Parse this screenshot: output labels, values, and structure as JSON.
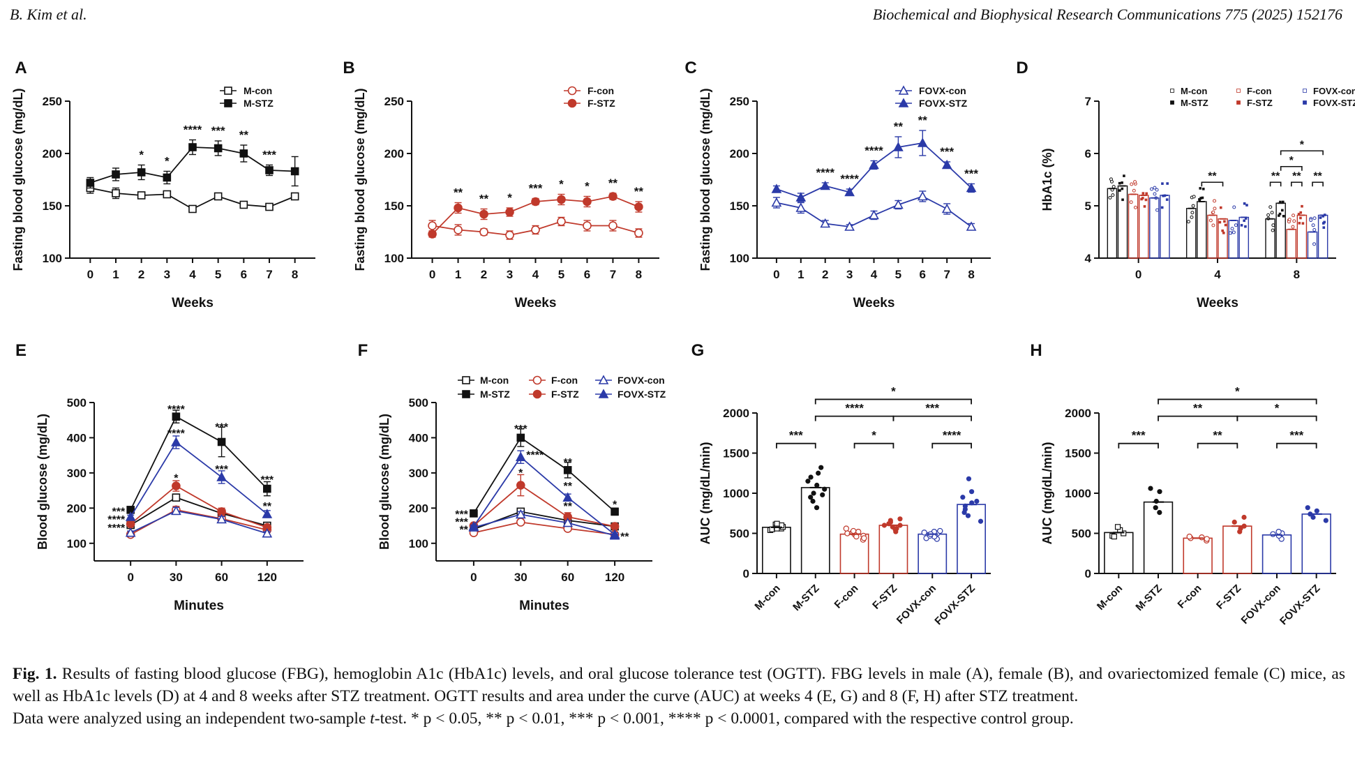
{
  "header": {
    "left": "B. Kim et al.",
    "right": "Biochemical and Biophysical Research Communications 775 (2025) 152176"
  },
  "colors": {
    "male": "#111111",
    "female": "#c0392b",
    "fovx": "#2b3aa8"
  },
  "chart_data": [
    {
      "panel": "A",
      "type": "line",
      "xlabel": "Weeks",
      "ylabel": "Fasting blood glucose (mg/dL)",
      "ylim": [
        100,
        250
      ],
      "yticks": [
        100,
        150,
        200,
        250
      ],
      "x": [
        0,
        1,
        2,
        3,
        4,
        5,
        6,
        7,
        8
      ],
      "series": [
        {
          "name": "M-con",
          "color": "#111111",
          "filled": false,
          "values": [
            167,
            162,
            160,
            161,
            147,
            159,
            151,
            149,
            159
          ],
          "err": [
            5,
            5,
            3,
            3,
            3,
            3,
            3,
            3,
            3
          ]
        },
        {
          "name": "M-STZ",
          "color": "#111111",
          "filled": true,
          "values": [
            172,
            180,
            182,
            177,
            206,
            205,
            200,
            184,
            183
          ],
          "err": [
            5,
            6,
            7,
            6,
            7,
            7,
            8,
            5,
            14
          ]
        }
      ],
      "sig": [
        {
          "x": 2,
          "t": "*"
        },
        {
          "x": 3,
          "t": "*"
        },
        {
          "x": 4,
          "t": "****"
        },
        {
          "x": 5,
          "t": "***"
        },
        {
          "x": 6,
          "t": "**"
        },
        {
          "x": 7,
          "t": "***"
        }
      ]
    },
    {
      "panel": "B",
      "type": "line",
      "xlabel": "Weeks",
      "ylabel": "Fasting blood glucose (mg/dL)",
      "ylim": [
        100,
        250
      ],
      "yticks": [
        100,
        150,
        200,
        250
      ],
      "x": [
        0,
        1,
        2,
        3,
        4,
        5,
        6,
        7,
        8
      ],
      "series": [
        {
          "name": "F-con",
          "color": "#c0392b",
          "filled": false,
          "values": [
            131,
            127,
            125,
            122,
            127,
            135,
            131,
            131,
            124
          ],
          "err": [
            5,
            5,
            3,
            4,
            4,
            4,
            5,
            5,
            4
          ]
        },
        {
          "name": "F-STZ",
          "color": "#c0392b",
          "filled": true,
          "values": [
            123,
            148,
            142,
            144,
            154,
            156,
            154,
            159,
            149
          ],
          "err": [
            3,
            5,
            5,
            4,
            3,
            5,
            5,
            3,
            5
          ]
        }
      ],
      "sig": [
        {
          "x": 1,
          "t": "**"
        },
        {
          "x": 2,
          "t": "**"
        },
        {
          "x": 3,
          "t": "*"
        },
        {
          "x": 4,
          "t": "***"
        },
        {
          "x": 5,
          "t": "*"
        },
        {
          "x": 6,
          "t": "*"
        },
        {
          "x": 7,
          "t": "**"
        },
        {
          "x": 8,
          "t": "**"
        }
      ]
    },
    {
      "panel": "C",
      "type": "line",
      "xlabel": "Weeks",
      "ylabel": "Fasting blood glucose (mg/dL)",
      "ylim": [
        100,
        250
      ],
      "yticks": [
        100,
        150,
        200,
        250
      ],
      "x": [
        0,
        1,
        2,
        3,
        4,
        5,
        6,
        7,
        8
      ],
      "series": [
        {
          "name": "FOVX-con",
          "color": "#2b3aa8",
          "filled": false,
          "values": [
            153,
            148,
            133,
            130,
            141,
            151,
            159,
            147,
            130
          ],
          "err": [
            5,
            5,
            3,
            2,
            4,
            4,
            5,
            5,
            3
          ]
        },
        {
          "name": "FOVX-STZ",
          "color": "#2b3aa8",
          "filled": true,
          "values": [
            166,
            158,
            169,
            163,
            189,
            206,
            210,
            189,
            167
          ],
          "err": [
            3,
            4,
            3,
            3,
            4,
            10,
            12,
            3,
            4
          ]
        }
      ],
      "sig": [
        {
          "x": 2,
          "t": "****"
        },
        {
          "x": 3,
          "t": "****"
        },
        {
          "x": 4,
          "t": "****"
        },
        {
          "x": 5,
          "t": "**"
        },
        {
          "x": 6,
          "t": "**"
        },
        {
          "x": 7,
          "t": "***"
        },
        {
          "x": 8,
          "t": "***"
        }
      ]
    },
    {
      "panel": "D",
      "type": "bar",
      "xlabel": "Weeks",
      "ylabel": "HbA1c (%)",
      "ylim": [
        4,
        7
      ],
      "yticks": [
        4,
        5,
        6,
        7
      ],
      "categories": [
        "0",
        "4",
        "8"
      ],
      "series": [
        {
          "name": "M-con",
          "color": "#111111",
          "filled": false,
          "values": [
            5.33,
            4.95,
            4.75
          ]
        },
        {
          "name": "M-STZ",
          "color": "#111111",
          "filled": true,
          "values": [
            5.38,
            5.08,
            5.05
          ]
        },
        {
          "name": "F-con",
          "color": "#c0392b",
          "filled": false,
          "values": [
            5.22,
            4.82,
            4.55
          ]
        },
        {
          "name": "F-STZ",
          "color": "#c0392b",
          "filled": true,
          "values": [
            5.2,
            4.75,
            4.82
          ]
        },
        {
          "name": "FOVX-con",
          "color": "#2b3aa8",
          "filled": false,
          "values": [
            5.15,
            4.72,
            4.5
          ]
        },
        {
          "name": "FOVX-STZ",
          "color": "#2b3aa8",
          "filled": true,
          "values": [
            5.2,
            4.78,
            4.82
          ]
        }
      ],
      "brackets": [
        {
          "cat": 1,
          "a": 1,
          "b": 3,
          "level": 0,
          "t": "**"
        },
        {
          "cat": 2,
          "a": 0,
          "b": 1,
          "level": 0,
          "t": "**"
        },
        {
          "cat": 2,
          "a": 2,
          "b": 3,
          "level": 0,
          "t": "**"
        },
        {
          "cat": 2,
          "a": 4,
          "b": 5,
          "level": 0,
          "t": "**"
        },
        {
          "cat": 2,
          "a": 1,
          "b": 3,
          "level": 1,
          "t": "*"
        },
        {
          "cat": 2,
          "a": 1,
          "b": 5,
          "level": 2,
          "t": "*"
        }
      ]
    },
    {
      "panel": "E",
      "type": "line",
      "xlabel": "Minutes",
      "ylabel": "Blood glucose (mg/dL)",
      "ylim": [
        50,
        500
      ],
      "yticks": [
        100,
        200,
        300,
        400,
        500
      ],
      "x": [
        0,
        30,
        60,
        120
      ],
      "series": [
        {
          "name": "M-con",
          "color": "#111111",
          "filled": false,
          "values": [
            152,
            230,
            185,
            150
          ],
          "err": [
            5,
            10,
            10,
            6
          ]
        },
        {
          "name": "M-STZ",
          "color": "#111111",
          "filled": true,
          "values": [
            195,
            460,
            388,
            255
          ],
          "err": [
            5,
            18,
            42,
            20
          ]
        },
        {
          "name": "F-con",
          "color": "#c0392b",
          "filled": false,
          "values": [
            125,
            195,
            170,
            138
          ],
          "err": [
            5,
            10,
            10,
            6
          ]
        },
        {
          "name": "F-STZ",
          "color": "#c0392b",
          "filled": true,
          "values": [
            155,
            263,
            190,
            145
          ],
          "err": [
            5,
            15,
            10,
            6
          ]
        },
        {
          "name": "FOVX-con",
          "color": "#2b3aa8",
          "filled": false,
          "values": [
            130,
            192,
            168,
            128
          ],
          "err": [
            5,
            10,
            8,
            5
          ]
        },
        {
          "name": "FOVX-STZ",
          "color": "#2b3aa8",
          "filled": true,
          "values": [
            175,
            387,
            288,
            183
          ],
          "err": [
            5,
            18,
            18,
            10
          ]
        }
      ],
      "labels": [
        {
          "x": 0,
          "y": 190,
          "t": "***",
          "side": "left"
        },
        {
          "x": 0,
          "y": 167,
          "t": "****",
          "side": "left"
        },
        {
          "x": 0,
          "y": 143,
          "t": "****",
          "side": "left"
        },
        {
          "x": 30,
          "y": 480,
          "t": "****",
          "side": "center"
        },
        {
          "x": 30,
          "y": 412,
          "t": "****",
          "side": "center"
        },
        {
          "x": 30,
          "y": 285,
          "t": "*",
          "side": "center"
        },
        {
          "x": 60,
          "y": 430,
          "t": "***",
          "side": "center"
        },
        {
          "x": 60,
          "y": 310,
          "t": "***",
          "side": "center"
        },
        {
          "x": 120,
          "y": 280,
          "t": "***",
          "side": "center"
        },
        {
          "x": 120,
          "y": 205,
          "t": "**",
          "side": "center"
        }
      ]
    },
    {
      "panel": "F",
      "type": "line",
      "xlabel": "Minutes",
      "ylabel": "Blood glucose (mg/dL)",
      "ylim": [
        50,
        500
      ],
      "yticks": [
        100,
        200,
        300,
        400,
        500
      ],
      "x": [
        0,
        30,
        60,
        120
      ],
      "series": [
        {
          "name": "M-con",
          "color": "#111111",
          "filled": false,
          "values": [
            140,
            190,
            165,
            148
          ],
          "err": [
            4,
            8,
            6,
            5
          ]
        },
        {
          "name": "M-STZ",
          "color": "#111111",
          "filled": true,
          "values": [
            185,
            400,
            308,
            190
          ],
          "err": [
            5,
            25,
            22,
            10
          ]
        },
        {
          "name": "F-con",
          "color": "#c0392b",
          "filled": false,
          "values": [
            130,
            160,
            142,
            125
          ],
          "err": [
            4,
            6,
            5,
            4
          ]
        },
        {
          "name": "F-STZ",
          "color": "#c0392b",
          "filled": true,
          "values": [
            150,
            265,
            175,
            148
          ],
          "err": [
            5,
            30,
            12,
            6
          ]
        },
        {
          "name": "FOVX-con",
          "color": "#2b3aa8",
          "filled": false,
          "values": [
            145,
            182,
            158,
            122
          ],
          "err": [
            4,
            8,
            6,
            4
          ]
        },
        {
          "name": "FOVX-STZ",
          "color": "#2b3aa8",
          "filled": true,
          "values": [
            148,
            345,
            230,
            125
          ],
          "err": [
            4,
            18,
            10,
            5
          ]
        }
      ],
      "legend": [
        "M-con",
        "F-con",
        "FOVX-con",
        "M-STZ",
        "F-STZ",
        "FOVX-STZ"
      ],
      "labels": [
        {
          "x": 0,
          "y": 182,
          "t": "***",
          "side": "left"
        },
        {
          "x": 0,
          "y": 160,
          "t": "***",
          "side": "left"
        },
        {
          "x": 0,
          "y": 138,
          "t": "**",
          "side": "left"
        },
        {
          "x": 30,
          "y": 425,
          "t": "***",
          "side": "center"
        },
        {
          "x": 30,
          "y": 350,
          "t": "****",
          "side": "right"
        },
        {
          "x": 30,
          "y": 300,
          "t": "*",
          "side": "center"
        },
        {
          "x": 60,
          "y": 330,
          "t": "**",
          "side": "center"
        },
        {
          "x": 60,
          "y": 262,
          "t": "**",
          "side": "center"
        },
        {
          "x": 60,
          "y": 205,
          "t": "**",
          "side": "center"
        },
        {
          "x": 120,
          "y": 210,
          "t": "*",
          "side": "center"
        },
        {
          "x": 120,
          "y": 118,
          "t": "**",
          "side": "right"
        }
      ]
    },
    {
      "panel": "G",
      "type": "bar",
      "ylabel": "AUC (mg/dL/min)",
      "ylim": [
        0,
        2000
      ],
      "yticks": [
        0,
        500,
        1000,
        1500,
        2000
      ],
      "categories": [
        "M-con",
        "M-STZ",
        "F-con",
        "F-STZ",
        "FOVX-con",
        "FOVX-STZ"
      ],
      "colors": [
        "#111111",
        "#111111",
        "#c0392b",
        "#c0392b",
        "#2b3aa8",
        "#2b3aa8"
      ],
      "filled": [
        false,
        true,
        false,
        true,
        false,
        true
      ],
      "values": [
        575,
        1070,
        490,
        600,
        490,
        860
      ],
      "points": [
        [
          540,
          560,
          590,
          610,
          550,
          580,
          600,
          570,
          620,
          560
        ],
        [
          820,
          900,
          1000,
          1100,
          1150,
          1250,
          1050,
          950,
          1200,
          1320,
          980
        ],
        [
          420,
          470,
          500,
          520,
          560,
          440,
          480,
          510,
          460,
          530
        ],
        [
          520,
          560,
          600,
          640,
          680,
          580,
          620,
          550,
          600,
          660
        ],
        [
          430,
          460,
          500,
          520,
          480,
          440,
          510,
          470,
          530,
          490
        ],
        [
          650,
          720,
          800,
          880,
          950,
          1020,
          1180,
          760,
          900,
          840
        ]
      ],
      "brackets": [
        {
          "a": 0,
          "b": 1,
          "level": 0,
          "t": "***"
        },
        {
          "a": 2,
          "b": 3,
          "level": 0,
          "t": "*"
        },
        {
          "a": 4,
          "b": 5,
          "level": 0,
          "t": "****"
        },
        {
          "a": 1,
          "b": 3,
          "level": 1,
          "t": "****"
        },
        {
          "a": 3,
          "b": 5,
          "level": 1,
          "t": "***"
        },
        {
          "a": 1,
          "b": 5,
          "level": 2,
          "t": "*"
        }
      ]
    },
    {
      "panel": "H",
      "type": "bar",
      "ylabel": "AUC (mg/dL/min)",
      "ylim": [
        0,
        2000
      ],
      "yticks": [
        0,
        500,
        1000,
        1500,
        2000
      ],
      "categories": [
        "M-con",
        "M-STZ",
        "F-con",
        "F-STZ",
        "FOVX-con",
        "FOVX-STZ"
      ],
      "colors": [
        "#111111",
        "#111111",
        "#c0392b",
        "#c0392b",
        "#2b3aa8",
        "#2b3aa8"
      ],
      "filled": [
        false,
        true,
        false,
        true,
        false,
        true
      ],
      "values": [
        510,
        890,
        440,
        590,
        480,
        740
      ],
      "points": [
        [
          470,
          500,
          540,
          580,
          460
        ],
        [
          760,
          820,
          900,
          1020,
          1060
        ],
        [
          410,
          430,
          440,
          450,
          460
        ],
        [
          520,
          560,
          590,
          640,
          700
        ],
        [
          430,
          470,
          500,
          520,
          490
        ],
        [
          660,
          700,
          740,
          780,
          820
        ]
      ],
      "brackets": [
        {
          "a": 0,
          "b": 1,
          "level": 0,
          "t": "***"
        },
        {
          "a": 2,
          "b": 3,
          "level": 0,
          "t": "**"
        },
        {
          "a": 4,
          "b": 5,
          "level": 0,
          "t": "***"
        },
        {
          "a": 1,
          "b": 3,
          "level": 1,
          "t": "**"
        },
        {
          "a": 3,
          "b": 5,
          "level": 1,
          "t": "*"
        },
        {
          "a": 1,
          "b": 5,
          "level": 2,
          "t": "*"
        }
      ]
    }
  ],
  "caption": {
    "label": "Fig. 1.",
    "text": " Results of fasting blood glucose (FBG), hemoglobin A1c (HbA1c) levels, and oral glucose tolerance test (OGTT). FBG levels in male (A), female (B), and ovariectomized female (C) mice, as well as HbA1c levels (D) at 4 and 8 weeks after STZ treatment. OGTT results and area under the curve (AUC) at weeks 4 (E, G) and 8 (F, H) after STZ treatment.",
    "stats_before": "Data were analyzed using an independent two-sample ",
    "stats_italic": "t",
    "stats_after": "-test. * p < 0.05, ** p < 0.01, *** p < 0.001, **** p < 0.0001, compared with the respective control group."
  }
}
